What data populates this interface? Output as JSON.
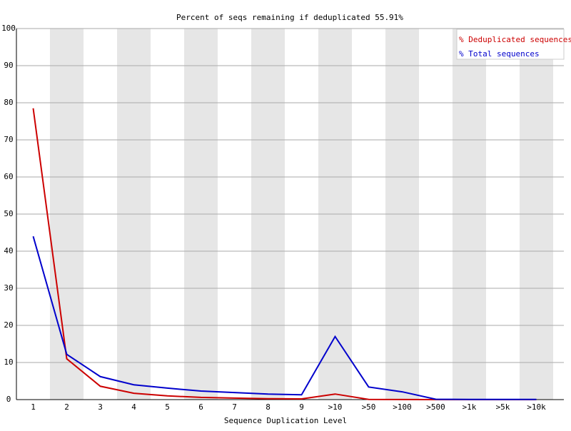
{
  "chart_data": {
    "type": "line",
    "title": "Percent of seqs remaining if deduplicated 55.91%",
    "x_label": "Sequence Duplication Level",
    "categories": [
      "1",
      "2",
      "3",
      "4",
      "5",
      "6",
      "7",
      "8",
      "9",
      ">10",
      ">50",
      ">100",
      ">500",
      ">1k",
      ">5k",
      ">10k"
    ],
    "series": [
      {
        "name": "% Deduplicated sequences",
        "color": "#cc0000",
        "values": [
          78.5,
          11.0,
          3.6,
          1.7,
          1.0,
          0.6,
          0.4,
          0.25,
          0.2,
          1.5,
          0.05,
          0.02,
          0.0,
          0.0,
          0.0,
          0.0
        ]
      },
      {
        "name": "% Total sequences",
        "color": "#0000cc",
        "values": [
          44.0,
          12.2,
          6.2,
          4.0,
          3.1,
          2.3,
          1.9,
          1.5,
          1.3,
          17.0,
          3.4,
          2.1,
          0.1,
          0.05,
          0.05,
          0.05
        ]
      }
    ],
    "ylim": [
      0,
      100
    ],
    "yticks": [
      0,
      10,
      20,
      30,
      40,
      50,
      60,
      70,
      80,
      90,
      100
    ],
    "grid": true,
    "legend": "top-right"
  }
}
